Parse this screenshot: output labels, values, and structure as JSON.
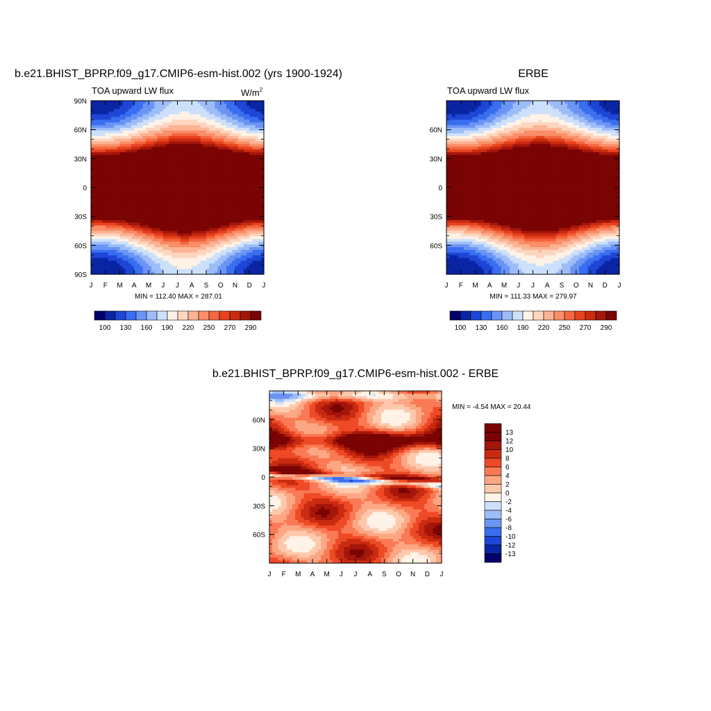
{
  "figure": {
    "panels": [
      {
        "id": "model",
        "title": "b.e21.BHIST_BPRP.f09_g17.CMIP6-esm-hist.002 (yrs 1900-1924)",
        "left_label": "TOA upward LW flux",
        "right_label": "W/m",
        "right_label_sup": "2",
        "stats": "MIN = 112.40 MAX = 287.01"
      },
      {
        "id": "obs",
        "title": "ERBE",
        "left_label": "TOA upward LW flux",
        "right_label": "",
        "right_label_sup": "",
        "stats": "MIN = 111.33 MAX = 279.97"
      },
      {
        "id": "diff",
        "title": "b.e21.BHIST_BPRP.f09_g17.CMIP6-esm-hist.002 - ERBE",
        "left_label": "",
        "right_label": "",
        "right_label_sup": "",
        "stats": "MIN =  -4.54 MAX =  20.44"
      }
    ]
  },
  "chart_data": [
    {
      "type": "heatmap",
      "title": "b.e21.BHIST_BPRP.f09_g17.CMIP6-esm-hist.002 (yrs 1900-1924)",
      "left_label": "TOA upward LW flux",
      "units": "W/m2",
      "x_ticks": [
        "J",
        "F",
        "M",
        "A",
        "M",
        "J",
        "J",
        "A",
        "S",
        "O",
        "N",
        "D",
        "J"
      ],
      "y_ticks": [
        "90N",
        "60N",
        "30N",
        "0",
        "30S",
        "60S",
        "90S"
      ],
      "y_range": [
        -90,
        90
      ],
      "value_range": [
        112.4,
        287.01
      ],
      "colorbar_labels": [
        "100",
        "130",
        "160",
        "190",
        "220",
        "250",
        "270",
        "290"
      ],
      "colorbar_colors": [
        "#03006d",
        "#0a25a3",
        "#1e46d6",
        "#3a6ef0",
        "#6b95f4",
        "#9cbdf8",
        "#cde0fb",
        "#fff2e6",
        "#fdd6c0",
        "#fcb394",
        "#f98e68",
        "#f4673f",
        "#e8421e",
        "#c92b10",
        "#a4160a",
        "#7a0403"
      ],
      "stats": "MIN = 112.40 MAX = 287.01"
    },
    {
      "type": "heatmap",
      "title": "ERBE",
      "left_label": "TOA upward LW flux",
      "x_ticks": [
        "J",
        "F",
        "M",
        "A",
        "M",
        "J",
        "J",
        "A",
        "S",
        "O",
        "N",
        "D",
        "J"
      ],
      "y_ticks": [
        "60N",
        "30N",
        "0",
        "30S",
        "60S"
      ],
      "y_range": [
        -90,
        90
      ],
      "value_range": [
        111.33,
        279.97
      ],
      "colorbar_labels": [
        "100",
        "130",
        "160",
        "190",
        "220",
        "250",
        "270",
        "290"
      ],
      "colorbar_colors": [
        "#03006d",
        "#0a25a3",
        "#1e46d6",
        "#3a6ef0",
        "#6b95f4",
        "#9cbdf8",
        "#cde0fb",
        "#fff2e6",
        "#fdd6c0",
        "#fcb394",
        "#f98e68",
        "#f4673f",
        "#e8421e",
        "#c92b10",
        "#a4160a",
        "#7a0403"
      ],
      "stats": "MIN = 111.33 MAX = 279.97"
    },
    {
      "type": "heatmap",
      "title": "b.e21.BHIST_BPRP.f09_g17.CMIP6-esm-hist.002 - ERBE",
      "x_ticks": [
        "J",
        "F",
        "M",
        "A",
        "M",
        "J",
        "J",
        "A",
        "S",
        "O",
        "N",
        "D",
        "J"
      ],
      "y_ticks": [
        "60N",
        "30N",
        "0",
        "30S",
        "60S"
      ],
      "y_range": [
        -90,
        90
      ],
      "value_range": [
        -4.54,
        20.44
      ],
      "colorbar_labels": [
        "13",
        "12",
        "10",
        "8",
        "6",
        "4",
        "2",
        "0",
        "-2",
        "-4",
        "-6",
        "-8",
        "-10",
        "-12",
        "-13"
      ],
      "colorbar_colors": [
        "#7a0403",
        "#a4160a",
        "#c92b10",
        "#ee4a26",
        "#f97a54",
        "#fca784",
        "#fdc9ad",
        "#fff2e6",
        "#cde0fb",
        "#9cbdf8",
        "#6b95f4",
        "#3a6ef0",
        "#1e46d6",
        "#0a25a3",
        "#03006d"
      ],
      "stats": "MIN =  -4.54 MAX =  20.44"
    }
  ]
}
